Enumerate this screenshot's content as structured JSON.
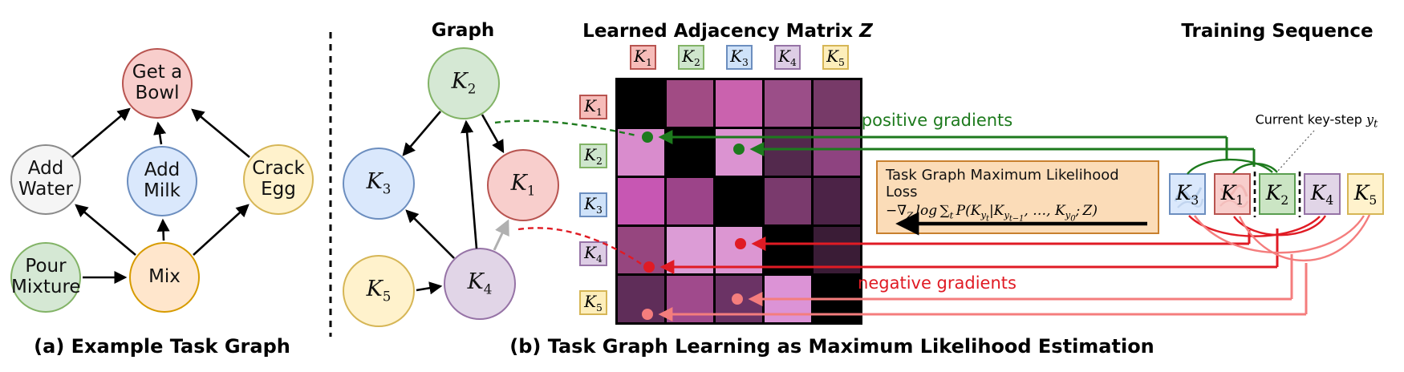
{
  "figure": {
    "panel_a": {
      "caption": "(a) Example Task Graph",
      "nodes": [
        {
          "label": "Get a Bowl",
          "fill": "#f8cecc",
          "border": "#b85450"
        },
        {
          "label": "Add Water",
          "fill": "#f5f5f5",
          "border": "#8a8a8a"
        },
        {
          "label": "Add Milk",
          "fill": "#dae8fc",
          "border": "#6c8ebf"
        },
        {
          "label": "Crack Egg",
          "fill": "#fff2cc",
          "border": "#d6b656"
        },
        {
          "label": "Pour Mixture",
          "fill": "#d5e8d4",
          "border": "#82b366"
        },
        {
          "label": "Mix",
          "fill": "#ffe6cc",
          "border": "#d79b00"
        }
      ],
      "edges": [
        "Add Water -> Get a Bowl",
        "Add Milk -> Get a Bowl",
        "Crack Egg -> Get a Bowl",
        "Mix -> Add Water",
        "Mix -> Add Milk",
        "Mix -> Crack Egg",
        "Pour Mixture -> Mix"
      ]
    },
    "panel_b": {
      "caption": "(b) Task Graph Learning as Maximum Likelihood Estimation",
      "graph": {
        "title": "Graph",
        "nodes": [
          {
            "html": "K<sub>2</sub>",
            "fill": "#d5e8d4",
            "border": "#82b366"
          },
          {
            "html": "K<sub>3</sub>",
            "fill": "#dae8fc",
            "border": "#6c8ebf"
          },
          {
            "html": "K<sub>1</sub>",
            "fill": "#f8cecc",
            "border": "#b85450"
          },
          {
            "html": "K<sub>5</sub>",
            "fill": "#fff2cc",
            "border": "#d6b656"
          },
          {
            "html": "K<sub>4</sub>",
            "fill": "#e1d5e7",
            "border": "#9673a6"
          }
        ],
        "edges": [
          "K2 -> K3",
          "K2 -> K1",
          "K4 -> K2",
          "K4 -> K3",
          "K5 -> K4",
          "K4 -> K1 (weak, gray)"
        ]
      },
      "matrix": {
        "title_html": "Learned Adjacency Matrix <i>Z</i>",
        "k_labels": [
          {
            "html": "K<sub>1</sub>",
            "fill": "#f6bcb9",
            "border": "#b85450"
          },
          {
            "html": "K<sub>2</sub>",
            "fill": "#cfe6cd",
            "border": "#82b366"
          },
          {
            "html": "K<sub>3</sub>",
            "fill": "#cfe2f9",
            "border": "#6c8ebf"
          },
          {
            "html": "K<sub>4</sub>",
            "fill": "#ddcde5",
            "border": "#9673a6"
          },
          {
            "html": "K<sub>5</sub>",
            "fill": "#fdeebb",
            "border": "#d6b656"
          }
        ],
        "cells": [
          [
            "#000000",
            "#a14b84",
            "#ca62ae",
            "#9b4e88",
            "#773a68"
          ],
          [
            "#d98ccd",
            "#000000",
            "#db93d1",
            "#53294d",
            "#8e4380"
          ],
          [
            "#c757b3",
            "#9c4489",
            "#000000",
            "#7a3a6d",
            "#4c2347"
          ],
          [
            "#96467f",
            "#dc9cd6",
            "#dc96d2",
            "#000000",
            "#3a1c36"
          ],
          [
            "#5f2d59",
            "#a04a8c",
            "#6b3365",
            "#dc93d6",
            "#000000"
          ]
        ]
      },
      "loss_box": {
        "title": "Task Graph Maximum Likelihood Loss",
        "formula_html": "&minus;&nabla;<sub>Z</sub>&thinsp;log&thinsp;&sum;<sub>t</sub>&thinsp;P(K<sub>y<sub>t</sub></sub>|K<sub>y<sub>t&minus;1</sub></sub>,&nbsp;&hellip;,&nbsp;K<sub>y<sub>0</sub></sub>;&thinsp;Z)",
        "fill": "#fbdcb8",
        "border": "#c8802e"
      },
      "gradients": {
        "positive_label": "positive gradients",
        "negative_label": "negative gradients",
        "positive_color": "#1d7a1d",
        "negative_color": "#e01b24",
        "negative_weak_color": "#f47d7d",
        "positive_targets": [
          "Z[K2][K1]",
          "Z[K2][K3]"
        ],
        "negative_targets": [
          "Z[K4][K1]",
          "Z[K4][K3]",
          "Z[K5][K1]",
          "Z[K5][K3]"
        ]
      },
      "sequence": {
        "title": "Training Sequence",
        "current_label_html": "Current key-step <i>y<sub>t</sub></i>",
        "current_step": "K2",
        "boxes": [
          {
            "html": "K<sub>3</sub>",
            "fill": "#dae8fc",
            "border": "#6c8ebf"
          },
          {
            "html": "K<sub>1</sub>",
            "fill": "#f8cecc",
            "border": "#b85450"
          },
          {
            "html": "K<sub>2</sub>",
            "fill": "#cbe5c4",
            "border": "#5a9e50"
          },
          {
            "html": "K<sub>4</sub>",
            "fill": "#e1d5e7",
            "border": "#9673a6"
          },
          {
            "html": "K<sub>5</sub>",
            "fill": "#fff2cc",
            "border": "#d6b656"
          }
        ]
      }
    }
  }
}
